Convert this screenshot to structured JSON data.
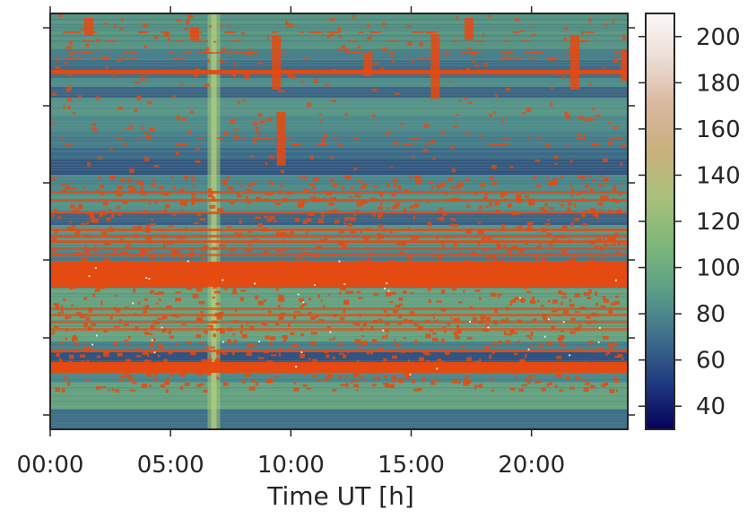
{
  "chart_data": {
    "type": "heatmap",
    "title": "",
    "xlabel": "Time UT [h]",
    "ylabel": "",
    "xlim": [
      0,
      24
    ],
    "x_ticks": [
      {
        "value": 0,
        "label": "00:00"
      },
      {
        "value": 5,
        "label": "05:00"
      },
      {
        "value": 10,
        "label": "10:00"
      },
      {
        "value": 15,
        "label": "15:00"
      },
      {
        "value": 20,
        "label": "20:00"
      }
    ],
    "y_ticks_count": 6,
    "y_tick_labels_shown": false,
    "grid": false,
    "colorbar": {
      "range": [
        30,
        210
      ],
      "ticks": [
        40,
        60,
        80,
        100,
        120,
        140,
        160,
        180,
        200
      ],
      "colormap": "gist_earth",
      "stops": [
        "#06005a",
        "#1f3a80",
        "#3f6f8c",
        "#5a9e86",
        "#7fb77a",
        "#a8c07a",
        "#c9b07c",
        "#d8b79e",
        "#ecdcd4",
        "#fcf8f8"
      ]
    },
    "flagged_color": "#e8490f",
    "flagged_description": "RFI-flagged samples rendered in orange",
    "notable_features": {
      "vertical_bright_stripe_time_h": 6.8,
      "strong_flagged_band_rows": [
        "near y-tick 4 (upper-middle)",
        "between y-ticks 5 and 6"
      ]
    }
  }
}
